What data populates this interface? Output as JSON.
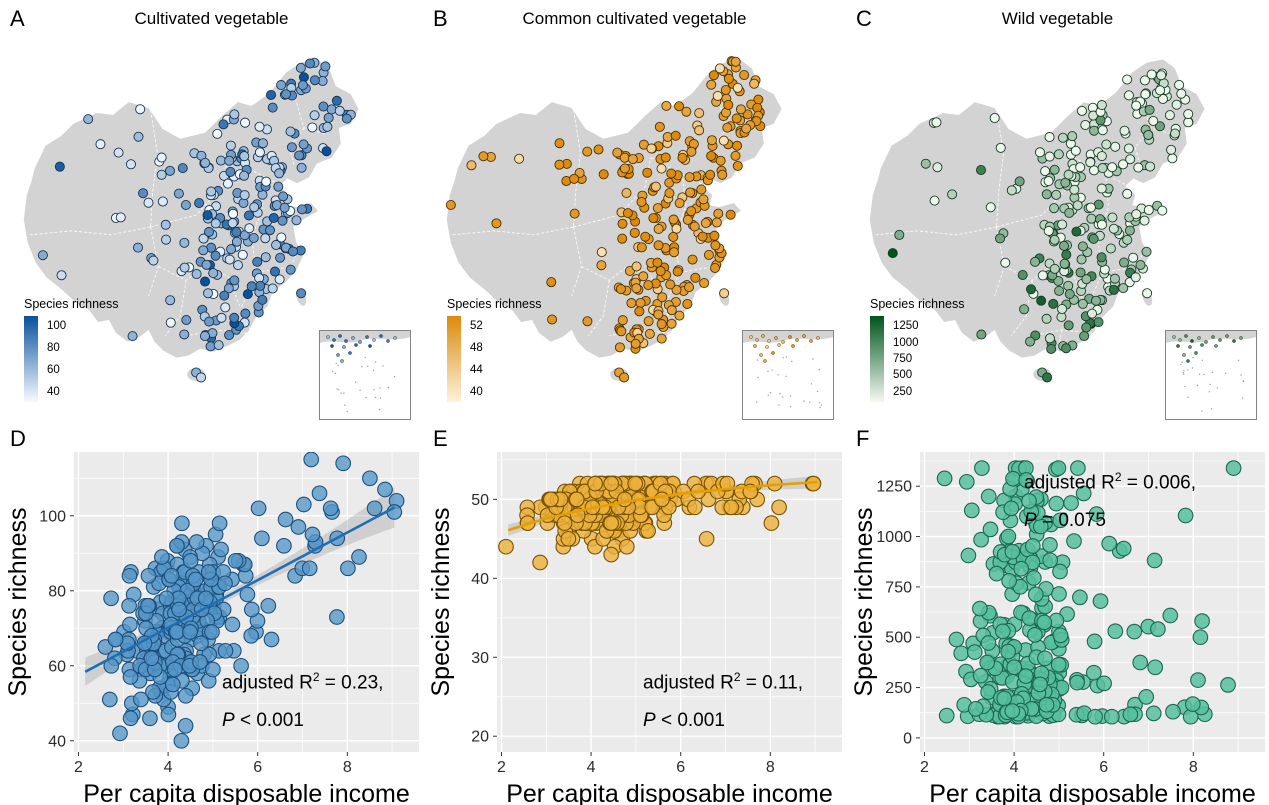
{
  "figure": {
    "background": "#ffffff",
    "map_land_color": "#d3d3d3",
    "map_border_color": "#ffffff",
    "panel_bg": "#ebebeb",
    "grid_color": "#ffffff"
  },
  "chart_data": [
    {
      "panel": "A",
      "type": "map",
      "title": "Cultivated vegetable",
      "legend_title": "Species richness",
      "legend_ticks": [
        "100",
        "80",
        "60",
        "40"
      ],
      "color_low": "#f7fbff",
      "color_high": "#08519c",
      "dot_stroke": "#16324f",
      "n_points": 255,
      "seed": 101,
      "color_bias": "east-south-darker",
      "note": "City-level dots across China; darker blue = higher richness, richest in east and south"
    },
    {
      "panel": "B",
      "type": "map",
      "title": "Common cultivated vegetable",
      "legend_title": "Species richness",
      "legend_ticks": [
        "52",
        "48",
        "44",
        "40"
      ],
      "color_low": "#fdf3dc",
      "color_high": "#dd8a0a",
      "dot_stroke": "#4a3000",
      "n_points": 260,
      "seed": 202,
      "color_bias": "mostly-high",
      "note": "Most cities near the maximum of 52 species (saturated orange), a few pale low-value cities"
    },
    {
      "panel": "C",
      "type": "map",
      "title": "Wild vegetable",
      "legend_title": "Species richness",
      "legend_ticks": [
        "1250",
        "1000",
        "750",
        "500",
        "250"
      ],
      "color_low": "#f4faf1",
      "color_high": "#00541d",
      "dot_stroke": "#143a22",
      "n_points": 260,
      "seed": 303,
      "color_bias": "southwest-darker",
      "note": "Pale dots in north and east, darker green (higher richness) in south-west"
    },
    {
      "panel": "D",
      "type": "scatter",
      "x_label": "Per capita disposable income",
      "y_label": "Species richness",
      "x_ticks": [
        2,
        4,
        6,
        8
      ],
      "y_ticks": [
        40,
        60,
        80,
        100
      ],
      "x_domain": [
        1.9,
        9.6
      ],
      "y_domain": [
        37,
        117
      ],
      "n_points": 285,
      "seed": 7,
      "point_fill": "#5596c8",
      "point_stroke": "#1c4f7c",
      "point_opacity": 0.78,
      "trend": {
        "color": "#1f6eb4",
        "x": [
          2.15,
          9.05
        ],
        "y": [
          58.4,
          102.2
        ]
      },
      "ci": {
        "mid": 1.2,
        "coef": 0.28,
        "center": 5.2
      },
      "gen": {
        "x_mean": 4.25,
        "x_sd": 0.72,
        "x_tail_p": 0.17,
        "x_tail_scale": 4.3,
        "x_min": 2.1,
        "x_max": 9.1,
        "model": "linear",
        "intercept": 44.8,
        "slope": 6.35,
        "noise": 10.5,
        "y_min": 40,
        "y_max": 115
      },
      "annotation": {
        "r2_pre": "adjusted R",
        "r2_sup": "2",
        "r2_post": " = 0.23,",
        "p_italic": "P",
        "p_rest": " < 0.001"
      }
    },
    {
      "panel": "E",
      "type": "scatter",
      "x_label": "Per capita disposable income",
      "y_label": "Species richness",
      "x_ticks": [
        2,
        4,
        6,
        8
      ],
      "y_ticks": [
        20,
        30,
        40,
        50
      ],
      "x_domain": [
        1.9,
        9.6
      ],
      "y_domain": [
        18,
        56
      ],
      "n_points": 330,
      "seed": 13,
      "point_fill": "#ecb23c",
      "point_stroke": "#7a5200",
      "point_opacity": 0.8,
      "trend": {
        "color": "#e69f00",
        "x": [
          2.15,
          3,
          4,
          5,
          6,
          7,
          8,
          9.05
        ],
        "y": [
          46.1,
          47.6,
          48.9,
          49.9,
          50.7,
          51.3,
          51.8,
          52.2
        ]
      },
      "ci": {
        "mid": 0.35,
        "coef": 0.035,
        "center": 5.4
      },
      "gen": {
        "x_mean": 4.25,
        "x_sd": 0.72,
        "x_tail_p": 0.17,
        "x_tail_scale": 4.3,
        "x_min": 2.1,
        "x_max": 9.1,
        "model": "saturating",
        "y_top": 52.6,
        "y_knee": 4.6,
        "y_kslope": 1.1,
        "noise": 3.2,
        "y_min": 38,
        "y_max": 52
      },
      "annotation": {
        "r2_pre": "adjusted R",
        "r2_sup": "2",
        "r2_post": " = 0.11,",
        "p_italic": "P",
        "p_rest": " < 0.001"
      }
    },
    {
      "panel": "F",
      "type": "scatter",
      "x_label": "Per capita disposable income",
      "y_label": "Species richness",
      "x_ticks": [
        2,
        4,
        6,
        8
      ],
      "y_ticks": [
        0,
        250,
        500,
        750,
        1000,
        1250
      ],
      "x_domain": [
        1.9,
        9.6
      ],
      "y_domain": [
        -70,
        1420
      ],
      "n_points": 300,
      "seed": 21,
      "point_fill": "#57bf9e",
      "point_stroke": "#1d6652",
      "point_opacity": 0.85,
      "trend": null,
      "gen": {
        "x_mean": 4.25,
        "x_sd": 0.72,
        "x_tail_p": 0.17,
        "x_tail_scale": 4.3,
        "x_min": 2.1,
        "x_max": 9.1,
        "model": "skewed",
        "base": 105,
        "range": 1300,
        "pow": 2.1,
        "y_min": 95,
        "y_max": 1340
      },
      "extra_points": [
        [
          4.27,
          1281
        ]
      ],
      "annotation": {
        "r2_pre": "adjusted R",
        "r2_sup": "2",
        "r2_post": " = 0.006,",
        "p_italic": "P",
        "p_rest": " = 0.075"
      }
    }
  ]
}
